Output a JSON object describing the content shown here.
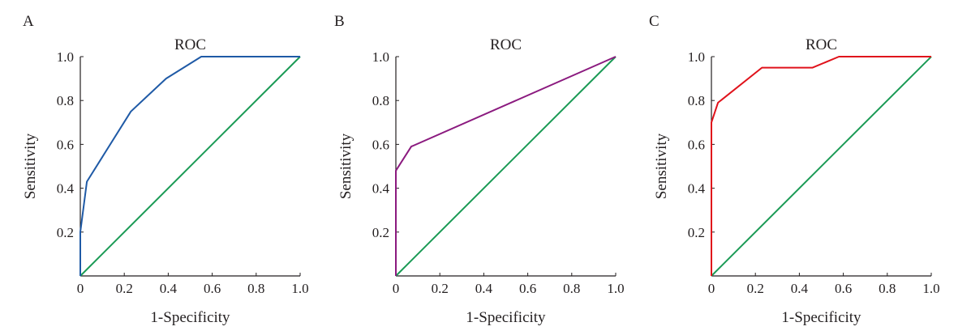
{
  "chart_data": [
    {
      "type": "line",
      "panel_label": "A",
      "title": "ROC",
      "xlabel": "1-Specificity",
      "ylabel": "Sensitivity",
      "xlim": [
        0,
        1.0
      ],
      "ylim": [
        0,
        1.0
      ],
      "x_ticks": [
        "0",
        "0.2",
        "0.4",
        "0.6",
        "0.8",
        "1.0"
      ],
      "y_ticks": [
        "0.2",
        "0.4",
        "0.6",
        "0.8",
        "1.0"
      ],
      "grid": false,
      "series": [
        {
          "color": "#1f5aa6",
          "points": [
            [
              0,
              0
            ],
            [
              0,
              0.2
            ],
            [
              0.03,
              0.43
            ],
            [
              0.23,
              0.75
            ],
            [
              0.39,
              0.9
            ],
            [
              0.55,
              1.0
            ],
            [
              1.0,
              1.0
            ]
          ]
        },
        {
          "color": "#1a9a55",
          "points": [
            [
              0,
              0
            ],
            [
              1.0,
              1.0
            ]
          ]
        }
      ]
    },
    {
      "type": "line",
      "panel_label": "B",
      "title": "ROC",
      "xlabel": "1-Specificity",
      "ylabel": "Sensitivity",
      "xlim": [
        0,
        1.0
      ],
      "ylim": [
        0,
        1.0
      ],
      "x_ticks": [
        "0",
        "0.2",
        "0.4",
        "0.6",
        "0.8",
        "1.0"
      ],
      "y_ticks": [
        "0.2",
        "0.4",
        "0.6",
        "0.8",
        "1.0"
      ],
      "grid": false,
      "series": [
        {
          "color": "#8b1a7f",
          "points": [
            [
              0,
              0
            ],
            [
              0,
              0.48
            ],
            [
              0.07,
              0.59
            ],
            [
              1.0,
              1.0
            ]
          ]
        },
        {
          "color": "#1a9a55",
          "points": [
            [
              0,
              0
            ],
            [
              1.0,
              1.0
            ]
          ]
        }
      ]
    },
    {
      "type": "line",
      "panel_label": "C",
      "title": "ROC",
      "xlabel": "1-Specificity",
      "ylabel": "Sensitivity",
      "xlim": [
        0,
        1.0
      ],
      "ylim": [
        0,
        1.0
      ],
      "x_ticks": [
        "0",
        "0.2",
        "0.4",
        "0.6",
        "0.8",
        "1.0"
      ],
      "y_ticks": [
        "0.2",
        "0.4",
        "0.6",
        "0.8",
        "1.0"
      ],
      "grid": false,
      "series": [
        {
          "color": "#e0121b",
          "points": [
            [
              0,
              0
            ],
            [
              0,
              0.7
            ],
            [
              0.03,
              0.79
            ],
            [
              0.23,
              0.95
            ],
            [
              0.46,
              0.95
            ],
            [
              0.58,
              1.0
            ],
            [
              1.0,
              1.0
            ]
          ]
        },
        {
          "color": "#1a9a55",
          "points": [
            [
              0,
              0
            ],
            [
              1.0,
              1.0
            ]
          ]
        }
      ]
    }
  ]
}
